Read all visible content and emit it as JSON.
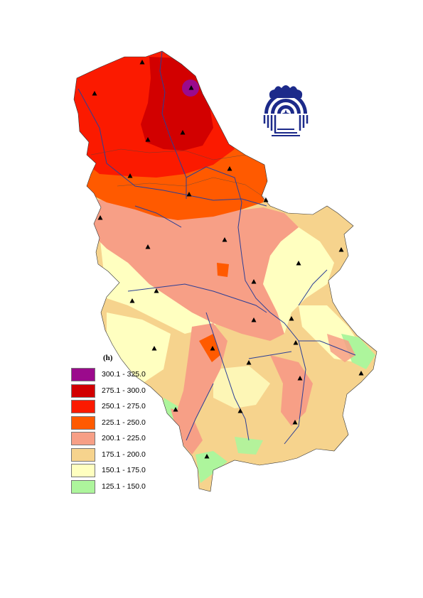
{
  "legend": {
    "title": "(h)",
    "classes": [
      {
        "label": "300.1 - 325.0",
        "color": "#9b0a8c"
      },
      {
        "label": "275.1 - 300.0",
        "color": "#d20000"
      },
      {
        "label": "250.1 - 275.0",
        "color": "#fb1a00"
      },
      {
        "label": "225.1 - 250.0",
        "color": "#ff5a00"
      },
      {
        "label": "200.1 - 225.0",
        "color": "#f79f86"
      },
      {
        "label": "175.1 - 200.0",
        "color": "#f6d38d"
      },
      {
        "label": "150.1 - 175.0",
        "color": "#ffffc0"
      },
      {
        "label": "125.1 - 150.0",
        "color": "#adf59c"
      }
    ]
  },
  "colors": {
    "river": "#2c3f96",
    "station": "#000000",
    "logo": "#1c2a8a"
  },
  "icons": {
    "station": "black-triangle",
    "logo": "institution-emblem"
  }
}
